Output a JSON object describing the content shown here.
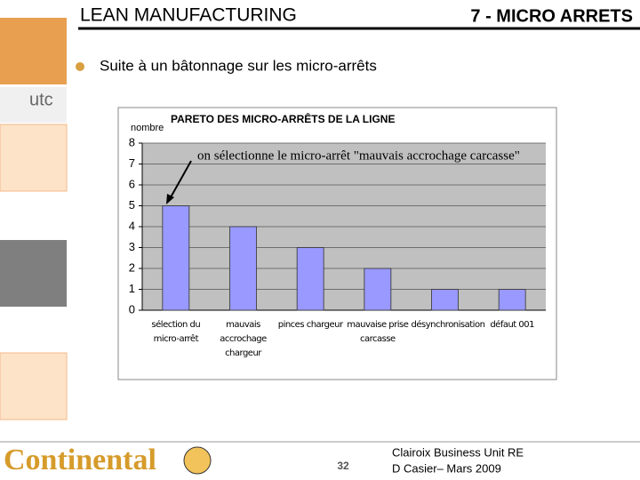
{
  "slide": {
    "title": "LEAN MANUFACTURING",
    "section": "7 - MICRO ARRETS",
    "bullet": "Suite à un bâtonnage sur les micro-arrêts",
    "utc_logo": "utc",
    "logo": "Continental",
    "page_number": 32,
    "footer": [
      "Clairoix Business Unit RE",
      "D Casier– Mars 2009"
    ]
  },
  "chart_data": {
    "type": "bar",
    "title": "PARETO DES MICRO-ARRÊTS DE LA LIGNE",
    "y_label": "nombre",
    "annotation": "on sélectionne le micro-arrêt \"mauvais accrochage carcasse\"",
    "categories": [
      "sélection du micro-arrêt",
      "mauvais accrochage chargeur",
      "pinces chargeur",
      "mauvaise prise carcasse",
      "désynchronisation",
      "défaut 001"
    ],
    "values": [
      5,
      4,
      3,
      2,
      1,
      1
    ],
    "color": "#9999ff",
    "ylim": [
      0,
      8
    ],
    "yticks": [
      0,
      1,
      2,
      3,
      4,
      5,
      6,
      7,
      8
    ],
    "grid": true
  }
}
